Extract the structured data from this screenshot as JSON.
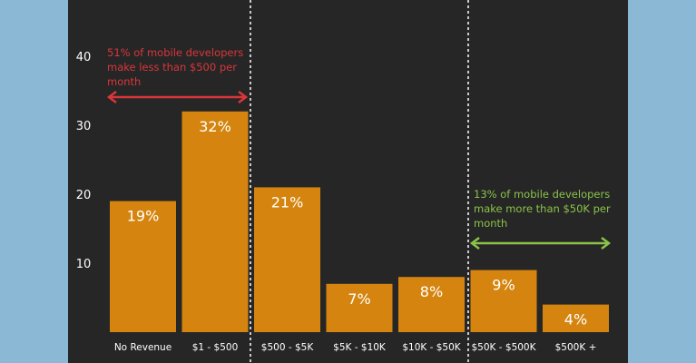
{
  "chart_data": {
    "type": "bar",
    "categories": [
      "No Revenue",
      "$1 - $500",
      "$500 - $5K",
      "$5K - $10K",
      "$10K - $50K",
      "$50K - $500K",
      "$500K +"
    ],
    "values": [
      19,
      32,
      21,
      7,
      8,
      9,
      4
    ],
    "data_labels": [
      "19%",
      "32%",
      "21%",
      "7%",
      "8%",
      "9%",
      "4%"
    ],
    "yticks": [
      10,
      20,
      30,
      40
    ],
    "ylim": [
      0,
      46
    ],
    "grid": false,
    "annotations": [
      {
        "lines": [
          "51% of mobile developers",
          "make less than $500 per",
          "month"
        ],
        "color": "#d9363a",
        "span": [
          "No Revenue",
          "$1 - $500"
        ]
      },
      {
        "lines": [
          "13% of mobile developers",
          "make more than $50K per",
          "month"
        ],
        "color": "#8bc34a",
        "span": [
          "$50K - $500K",
          "$500K +"
        ]
      }
    ],
    "colors": {
      "bar": "#d5850f",
      "background": "#262626",
      "outer": "#8bb8d4",
      "text": "#ffffff"
    }
  }
}
